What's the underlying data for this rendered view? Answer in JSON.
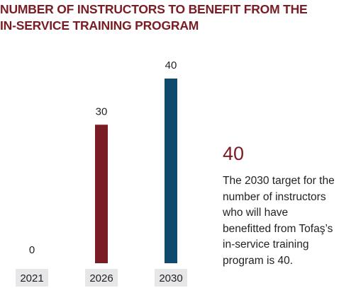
{
  "title_lines": [
    "NUMBER OF INSTRUCTORS TO BENEFIT FROM THE",
    "IN-SERVICE TRAINING PROGRAM"
  ],
  "highlight": {
    "value": "40",
    "text_lines": [
      "The 2030 target for the",
      "number of instructors",
      "who will have",
      "benefitted from Tofaş’s",
      "in-service training",
      "program is 40."
    ]
  },
  "colors": {
    "title": "#7a1c24",
    "bar_2026": "#7a1c24",
    "bar_2030": "#0e4a6b",
    "label_box": "#e6e7e8",
    "text": "#231f20"
  },
  "chart_data": {
    "type": "bar",
    "categories": [
      "2021",
      "2026",
      "2030"
    ],
    "values": [
      0,
      30,
      40
    ],
    "value_labels": [
      "0",
      "30",
      "40"
    ],
    "bar_colors": [
      "#7a1c24",
      "#7a1c24",
      "#0e4a6b"
    ],
    "title": "NUMBER OF INSTRUCTORS TO BENEFIT FROM THE IN-SERVICE TRAINING PROGRAM",
    "xlabel": "",
    "ylabel": "",
    "ylim": [
      0,
      40
    ],
    "grid": false,
    "legend": "none"
  }
}
